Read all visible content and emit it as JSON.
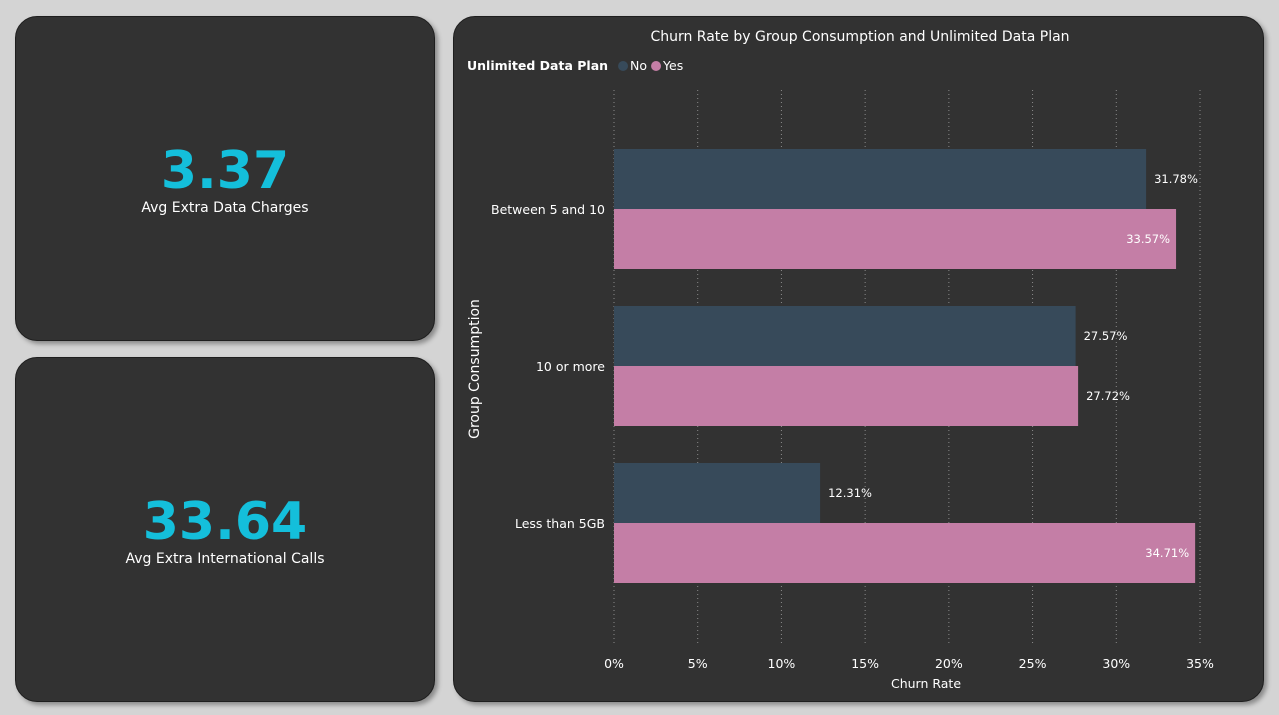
{
  "kpis": [
    {
      "value": "3.37",
      "label": "Avg Extra Data Charges"
    },
    {
      "value": "33.64",
      "label": "Avg Extra International Calls"
    }
  ],
  "colors": {
    "no": "#374a5a",
    "yes": "#c47ea6",
    "accent": "#14bfdb"
  },
  "chart_data": {
    "type": "bar",
    "orientation": "horizontal",
    "title": "Churn Rate by Group Consumption and Unlimited Data Plan",
    "legend_title": "Unlimited Data Plan",
    "legend_position": "top-left",
    "xlabel": "Churn Rate",
    "ylabel": "Group Consumption",
    "categories": [
      "Between 5 and 10",
      "10 or more",
      "Less than 5GB"
    ],
    "series": [
      {
        "name": "No",
        "values": [
          31.78,
          27.57,
          12.31
        ],
        "labels": [
          "31.78%",
          "27.57%",
          "12.31%"
        ]
      },
      {
        "name": "Yes",
        "values": [
          33.57,
          27.72,
          34.71
        ],
        "labels": [
          "33.57%",
          "27.72%",
          "34.71%"
        ]
      }
    ],
    "xlim": [
      0,
      35
    ],
    "ticks": [
      0,
      5,
      10,
      15,
      20,
      25,
      30,
      35
    ],
    "tick_labels": [
      "0%",
      "5%",
      "10%",
      "15%",
      "20%",
      "25%",
      "30%",
      "35%"
    ],
    "grid": "vertical dotted"
  }
}
